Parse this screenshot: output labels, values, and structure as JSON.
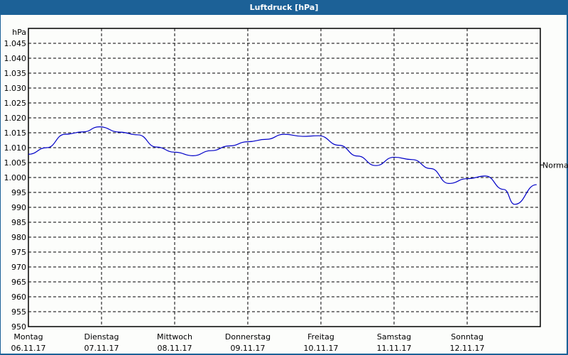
{
  "window": {
    "title": "Luftdruck [hPa]",
    "title_bar_color": "#1c6197",
    "background": "#fcfdfb"
  },
  "chart_data": {
    "type": "line",
    "title": "Luftdruck [hPa]",
    "xlabel": "",
    "ylabel": "hPa",
    "ylim": [
      950,
      1045
    ],
    "grid": true,
    "y_ticks": [
      "1.045",
      "1.040",
      "1.035",
      "1.030",
      "1.025",
      "1.020",
      "1.015",
      "1.010",
      "1.005",
      "1.000",
      "995",
      "990",
      "985",
      "980",
      "975",
      "970",
      "965",
      "960",
      "955",
      "950"
    ],
    "x_ticks": [
      {
        "day": "Montag",
        "date": "06.11.17"
      },
      {
        "day": "Dienstag",
        "date": "07.11.17"
      },
      {
        "day": "Mittwoch",
        "date": "08.11.17"
      },
      {
        "day": "Donnerstag",
        "date": "09.11.17"
      },
      {
        "day": "Freitag",
        "date": "10.11.17"
      },
      {
        "day": "Samstag",
        "date": "11.11.17"
      },
      {
        "day": "Sonntag",
        "date": "12.11.17"
      }
    ],
    "annotation": {
      "label": "Normal",
      "value": 1004.2
    },
    "series": [
      {
        "name": "Luftdruck",
        "color": "#0000c8",
        "x_days": [
          0,
          0.25,
          0.5,
          0.75,
          0.97,
          1.25,
          1.5,
          1.75,
          2.0,
          2.25,
          2.5,
          2.75,
          3.0,
          3.25,
          3.5,
          3.75,
          3.97,
          4.25,
          4.5,
          4.75,
          5.0,
          5.25,
          5.5,
          5.75,
          6.0,
          6.25,
          6.5,
          6.65,
          6.95
        ],
        "values": [
          1007.8,
          1010.0,
          1014.5,
          1015.3,
          1017.0,
          1015.2,
          1014.3,
          1010.2,
          1008.5,
          1007.3,
          1009.0,
          1010.6,
          1012.0,
          1012.8,
          1014.5,
          1013.8,
          1014.0,
          1010.8,
          1007.2,
          1004.0,
          1006.8,
          1006.0,
          1003.0,
          998.0,
          999.6,
          1000.5,
          996.0,
          991.0,
          997.6
        ]
      }
    ]
  }
}
